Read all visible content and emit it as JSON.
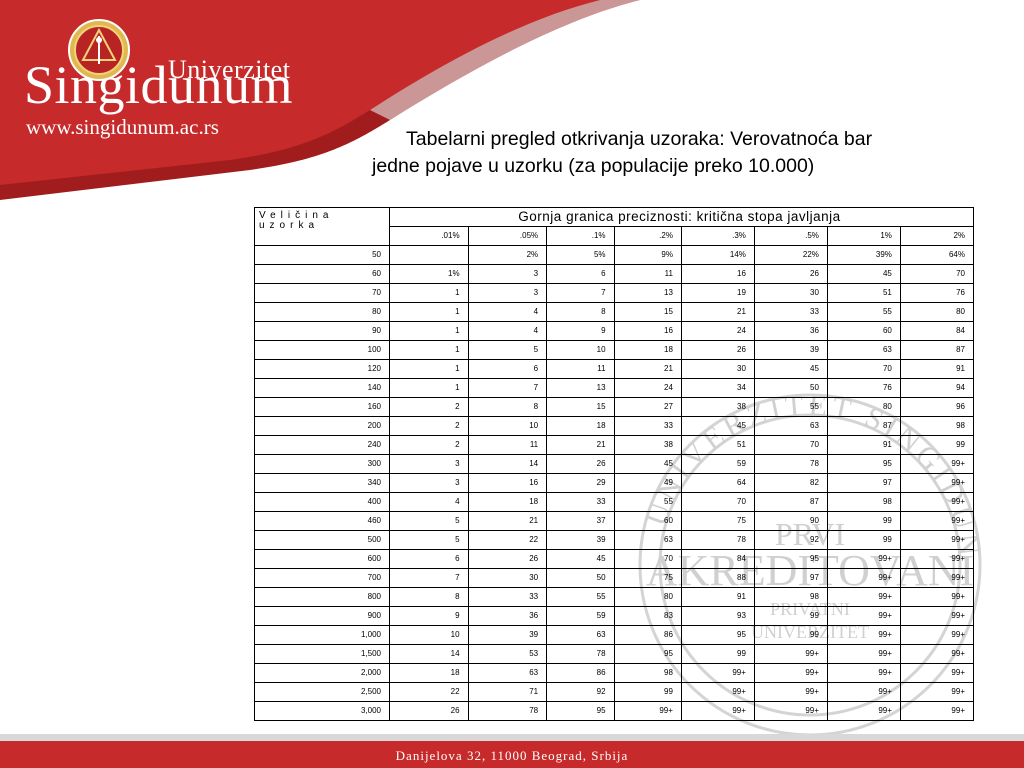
{
  "brand": {
    "name_top": "Univerzitet",
    "name_main": "Singidunum",
    "url": "www.singidunum.ac.rs",
    "colors": {
      "red": "#c62a2a",
      "dark_red": "#a11c1c"
    }
  },
  "seal": {
    "text_arc": "UNIVERZITET SINGIDUNUM",
    "line1": "PRVI",
    "line2": "AKREDITOVANI",
    "line3": "PRIVATNI",
    "line4": "UNIVERZITET"
  },
  "title": {
    "line1": "Tabelarni pregled otkrivanja uzoraka: Verovatnoća bar",
    "line2": "jedne pojave u uzorku (za populacije preko 10.000)"
  },
  "table": {
    "size_header": "Veličina uzorka",
    "group_header": "Gornja granica preciznosti: kritična stopa javljanja",
    "columns": [
      ".01%",
      ".05%",
      ".1%",
      ".2%",
      ".3%",
      ".5%",
      "1%",
      "2%"
    ],
    "rows": [
      [
        "50",
        "",
        "2%",
        "5%",
        "9%",
        "14%",
        "22%",
        "39%",
        "64%"
      ],
      [
        "60",
        "1%",
        "3",
        "6",
        "11",
        "16",
        "26",
        "45",
        "70"
      ],
      [
        "70",
        "1",
        "3",
        "7",
        "13",
        "19",
        "30",
        "51",
        "76"
      ],
      [
        "80",
        "1",
        "4",
        "8",
        "15",
        "21",
        "33",
        "55",
        "80"
      ],
      [
        "90",
        "1",
        "4",
        "9",
        "16",
        "24",
        "36",
        "60",
        "84"
      ],
      [
        "100",
        "1",
        "5",
        "10",
        "18",
        "26",
        "39",
        "63",
        "87"
      ],
      [
        "120",
        "1",
        "6",
        "11",
        "21",
        "30",
        "45",
        "70",
        "91"
      ],
      [
        "140",
        "1",
        "7",
        "13",
        "24",
        "34",
        "50",
        "76",
        "94"
      ],
      [
        "160",
        "2",
        "8",
        "15",
        "27",
        "38",
        "55",
        "80",
        "96"
      ],
      [
        "200",
        "2",
        "10",
        "18",
        "33",
        "45",
        "63",
        "87",
        "98"
      ],
      [
        "240",
        "2",
        "11",
        "21",
        "38",
        "51",
        "70",
        "91",
        "99"
      ],
      [
        "300",
        "3",
        "14",
        "26",
        "45",
        "59",
        "78",
        "95",
        "99+"
      ],
      [
        "340",
        "3",
        "16",
        "29",
        "49",
        "64",
        "82",
        "97",
        "99+"
      ],
      [
        "400",
        "4",
        "18",
        "33",
        "55",
        "70",
        "87",
        "98",
        "99+"
      ],
      [
        "460",
        "5",
        "21",
        "37",
        "60",
        "75",
        "90",
        "99",
        "99+"
      ],
      [
        "500",
        "5",
        "22",
        "39",
        "63",
        "78",
        "92",
        "99",
        "99+"
      ],
      [
        "600",
        "6",
        "26",
        "45",
        "70",
        "84",
        "95",
        "99+",
        "99+"
      ],
      [
        "700",
        "7",
        "30",
        "50",
        "75",
        "88",
        "97",
        "99+",
        "99+"
      ],
      [
        "800",
        "8",
        "33",
        "55",
        "80",
        "91",
        "98",
        "99+",
        "99+"
      ],
      [
        "900",
        "9",
        "36",
        "59",
        "83",
        "93",
        "99",
        "99+",
        "99+"
      ],
      [
        "1,000",
        "10",
        "39",
        "63",
        "86",
        "95",
        "99",
        "99+",
        "99+"
      ],
      [
        "1,500",
        "14",
        "53",
        "78",
        "95",
        "99",
        "99+",
        "99+",
        "99+"
      ],
      [
        "2,000",
        "18",
        "63",
        "86",
        "98",
        "99+",
        "99+",
        "99+",
        "99+"
      ],
      [
        "2,500",
        "22",
        "71",
        "92",
        "99",
        "99+",
        "99+",
        "99+",
        "99+"
      ],
      [
        "3,000",
        "26",
        "78",
        "95",
        "99+",
        "99+",
        "99+",
        "99+",
        "99+"
      ]
    ]
  },
  "footer": {
    "address": "Danijelova 32, 11000 Beograd, Srbija"
  }
}
